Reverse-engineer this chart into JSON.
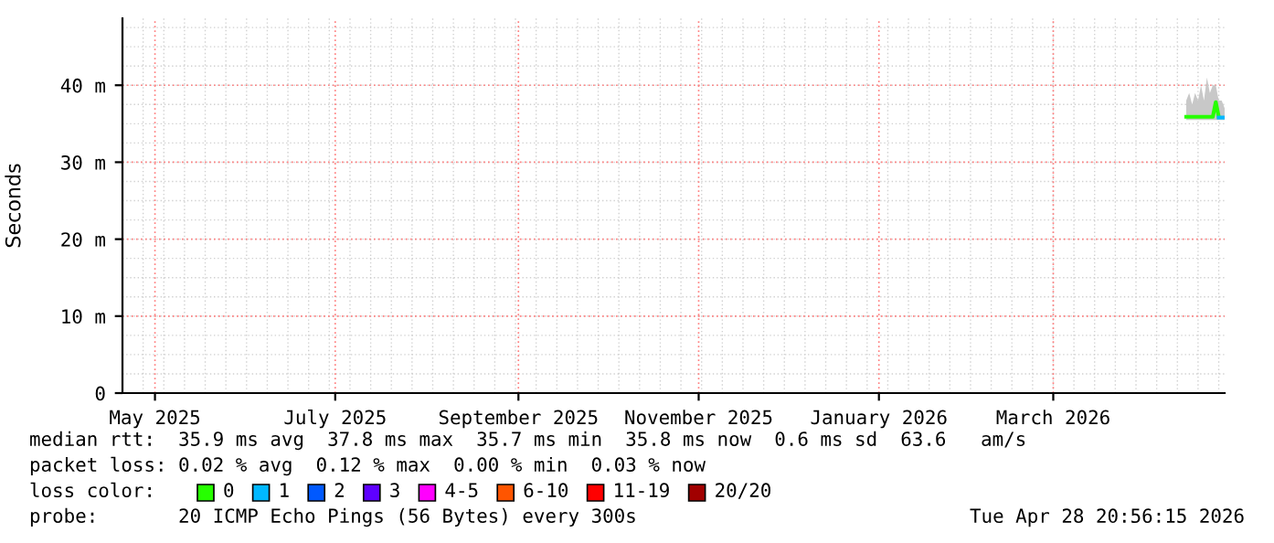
{
  "chart_data": {
    "type": "line",
    "ylabel": "Seconds",
    "legend_title": "loss color:",
    "legend": "bottom",
    "grid": true,
    "x": [
      "2026-04-15",
      "2026-04-16",
      "2026-04-17",
      "2026-04-18",
      "2026-04-19",
      "2026-04-20",
      "2026-04-21",
      "2026-04-22",
      "2026-04-23",
      "2026-04-24",
      "2026-04-25",
      "2026-04-26",
      "2026-04-27",
      "2026-04-28"
    ],
    "xlim": [
      "2025-04-20",
      "2026-04-28"
    ],
    "xticks": [
      {
        "value": "2025-05-01",
        "label": "May 2025"
      },
      {
        "value": "2025-07-01",
        "label": "July 2025"
      },
      {
        "value": "2025-09-01",
        "label": "September 2025"
      },
      {
        "value": "2025-11-01",
        "label": "November 2025"
      },
      {
        "value": "2026-01-01",
        "label": "January 2026"
      },
      {
        "value": "2026-03-01",
        "label": "March 2026"
      }
    ],
    "ylim": [
      0,
      48.7
    ],
    "yticks": [
      0,
      {
        "value": 10,
        "label": "10 m"
      },
      {
        "value": 20,
        "label": "20 m"
      },
      {
        "value": 30,
        "label": "30 m"
      },
      {
        "value": 40,
        "label": "40 m"
      }
    ],
    "series": [
      {
        "name": "0",
        "color": "#26ff00",
        "values": [
          35.9,
          35.9,
          35.9,
          35.9,
          35.9,
          35.9,
          35.9,
          35.9,
          35.9,
          35.9,
          37.8,
          35.9,
          null,
          null
        ],
        "lower": [
          35.5,
          35.5,
          35.5,
          35.5,
          35.5,
          35.5,
          35.5,
          35.5,
          35.5,
          35.5,
          35.5,
          35.5,
          35.5,
          35.5
        ],
        "upper": [
          38,
          39,
          37.5,
          39,
          38,
          40,
          38,
          41,
          39,
          40,
          40,
          38,
          38,
          37
        ]
      },
      {
        "name": "1",
        "color": "#00b8ff",
        "values": [
          null,
          null,
          null,
          null,
          null,
          null,
          null,
          null,
          null,
          null,
          null,
          35.8,
          35.8,
          35.8
        ]
      },
      {
        "name": "2",
        "color": "#0059ff",
        "values": [
          null,
          null,
          null,
          null,
          null,
          null,
          null,
          null,
          null,
          null,
          null,
          null,
          null,
          null
        ]
      },
      {
        "name": "3",
        "color": "#5e00ff",
        "values": [
          null,
          null,
          null,
          null,
          null,
          null,
          null,
          null,
          null,
          null,
          null,
          null,
          null,
          null
        ]
      },
      {
        "name": "4-5",
        "color": "#ff00fe",
        "values": [
          null,
          null,
          null,
          null,
          null,
          null,
          null,
          null,
          null,
          null,
          null,
          null,
          null,
          null
        ]
      },
      {
        "name": "6-10",
        "color": "#ff5500",
        "values": [
          null,
          null,
          null,
          null,
          null,
          null,
          null,
          null,
          null,
          null,
          null,
          null,
          null,
          null
        ]
      },
      {
        "name": "11-19",
        "color": "#ff0000",
        "values": [
          null,
          null,
          null,
          null,
          null,
          null,
          null,
          null,
          null,
          null,
          null,
          null,
          null,
          null
        ]
      },
      {
        "name": "20/20",
        "color": "#a10000",
        "values": [
          null,
          null,
          null,
          null,
          null,
          null,
          null,
          null,
          null,
          null,
          null,
          null,
          null,
          null
        ]
      }
    ],
    "annotations": [
      "median rtt:  35.9 ms avg  37.8 ms max  35.7 ms min  35.8 ms now  0.6 ms sd  63.6   am/s",
      "packet loss: 0.02 % avg  0.12 % max  0.00 % min  0.03 % now",
      "probe:       20 ICMP Echo Pings (56 Bytes) every 300s",
      "Tue Apr 28 20:56:15 2026"
    ]
  }
}
